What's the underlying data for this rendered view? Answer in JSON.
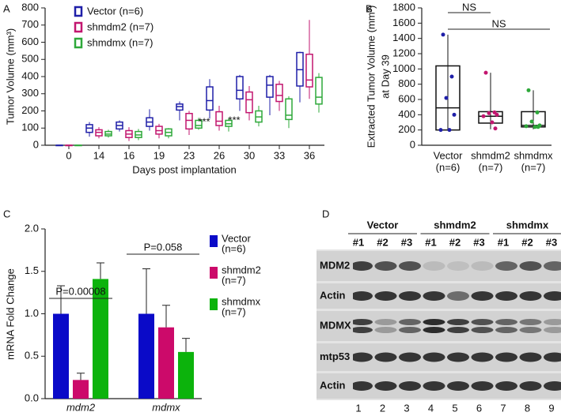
{
  "chart_data": [
    {
      "panel": "A",
      "type": "box",
      "ylabel": "Tumor Volume (mm³)",
      "xlabel": "Days post implantation",
      "categories": [
        "0",
        "14",
        "16",
        "19",
        "23",
        "26",
        "30",
        "33",
        "36"
      ],
      "ylim": [
        0,
        800
      ],
      "yticks": [
        0,
        100,
        200,
        300,
        400,
        500,
        600,
        700,
        800
      ],
      "annotations": [
        "***",
        "***"
      ],
      "series": [
        {
          "name": "Vector (n=6)",
          "color": "#1f1fa8",
          "boxes": [
            {
              "min": 0,
              "q1": 0,
              "median": 0,
              "q3": 0,
              "max": 0
            },
            {
              "min": 50,
              "q1": 75,
              "median": 100,
              "q3": 120,
              "max": 135
            },
            {
              "min": 80,
              "q1": 95,
              "median": 115,
              "q3": 135,
              "max": 145
            },
            {
              "min": 85,
              "q1": 110,
              "median": 135,
              "q3": 160,
              "max": 210
            },
            {
              "min": 145,
              "q1": 205,
              "median": 225,
              "q3": 240,
              "max": 255
            },
            {
              "min": 155,
              "q1": 205,
              "median": 260,
              "q3": 340,
              "max": 385
            },
            {
              "min": 200,
              "q1": 270,
              "median": 320,
              "q3": 400,
              "max": 410
            },
            {
              "min": 175,
              "q1": 280,
              "median": 350,
              "q3": 400,
              "max": 410
            },
            {
              "min": 250,
              "q1": 345,
              "median": 440,
              "q3": 540,
              "max": 545
            }
          ]
        },
        {
          "name": "shmdm2 (n=7)",
          "color": "#c2166f",
          "boxes": [
            {
              "min": 0,
              "q1": 0,
              "median": 0,
              "q3": 0,
              "max": 0
            },
            {
              "min": 40,
              "q1": 55,
              "median": 75,
              "q3": 90,
              "max": 105
            },
            {
              "min": 25,
              "q1": 45,
              "median": 65,
              "q3": 85,
              "max": 105
            },
            {
              "min": 40,
              "q1": 65,
              "median": 85,
              "q3": 110,
              "max": 125
            },
            {
              "min": 60,
              "q1": 95,
              "median": 145,
              "q3": 185,
              "max": 200
            },
            {
              "min": 85,
              "q1": 115,
              "median": 140,
              "q3": 195,
              "max": 230
            },
            {
              "min": 145,
              "q1": 190,
              "median": 265,
              "q3": 310,
              "max": 345
            },
            {
              "min": 200,
              "q1": 255,
              "median": 290,
              "q3": 355,
              "max": 375
            },
            {
              "min": 270,
              "q1": 340,
              "median": 380,
              "q3": 530,
              "max": 730
            }
          ]
        },
        {
          "name": "shmdmx (n=7)",
          "color": "#2ea83a",
          "boxes": [
            {
              "min": 0,
              "q1": 0,
              "median": 0,
              "q3": 0,
              "max": 0
            },
            {
              "min": 45,
              "q1": 55,
              "median": 65,
              "q3": 80,
              "max": 90
            },
            {
              "min": 30,
              "q1": 45,
              "median": 60,
              "q3": 80,
              "max": 95
            },
            {
              "min": 40,
              "q1": 55,
              "median": 75,
              "q3": 95,
              "max": 100
            },
            {
              "min": 90,
              "q1": 100,
              "median": 115,
              "q3": 145,
              "max": 160
            },
            {
              "min": 80,
              "q1": 110,
              "median": 125,
              "q3": 145,
              "max": 160
            },
            {
              "min": 110,
              "q1": 135,
              "median": 165,
              "q3": 200,
              "max": 230
            },
            {
              "min": 100,
              "q1": 150,
              "median": 175,
              "q3": 270,
              "max": 285
            },
            {
              "min": 190,
              "q1": 240,
              "median": 280,
              "q3": 395,
              "max": 420
            }
          ]
        }
      ]
    },
    {
      "panel": "B",
      "type": "box",
      "ylabel": [
        "Extracted Tumor Volume (mm³)",
        "at Day 39"
      ],
      "categories": [
        "Vector",
        "shmdm2",
        "shmdmx"
      ],
      "category_notes": [
        "(n=6)",
        "(n=7)",
        "(n=7)"
      ],
      "colors": [
        "#1f1fa8",
        "#c2166f",
        "#2ea83a"
      ],
      "ylim": [
        0,
        1800
      ],
      "yticks": [
        0,
        200,
        400,
        600,
        800,
        1000,
        1200,
        1400,
        1600,
        1800
      ],
      "annotations": [
        "NS",
        "NS"
      ],
      "boxes": [
        {
          "min": 190,
          "q1": 200,
          "median": 490,
          "q3": 1040,
          "max": 1450
        },
        {
          "min": 210,
          "q1": 290,
          "median": 380,
          "q3": 440,
          "max": 950
        },
        {
          "min": 210,
          "q1": 240,
          "median": 260,
          "q3": 440,
          "max": 720
        }
      ],
      "points": [
        [
          1450,
          900,
          620,
          400,
          200,
          200
        ],
        [
          950,
          430,
          420,
          400,
          380,
          300,
          220
        ],
        [
          720,
          430,
          310,
          260,
          250,
          240,
          240
        ]
      ]
    },
    {
      "panel": "C",
      "type": "bar",
      "ylabel": "mRNA Fold Change",
      "categories": [
        "mdm2",
        "mdmx"
      ],
      "ylim": [
        0,
        2
      ],
      "yticks": [
        {
          "value": 0,
          "label": "0.0"
        },
        {
          "value": 0.5,
          "label": "0.5"
        },
        {
          "value": 1,
          "label": "1.0"
        },
        {
          "value": 1.5,
          "label": "1.5"
        },
        {
          "value": 2,
          "label": "2.0"
        }
      ],
      "annotations": [
        "P=0.00008",
        "P=0.058"
      ],
      "series": [
        {
          "name": "Vector",
          "note": "(n=6)",
          "color": "#0a0ac8",
          "values": [
            1.0,
            1.0
          ],
          "errors": [
            0.33,
            0.53
          ]
        },
        {
          "name": "shmdm2",
          "note": "(n=7)",
          "color": "#cc0a6a",
          "values": [
            0.22,
            0.84
          ],
          "errors": [
            0.08,
            0.26
          ]
        },
        {
          "name": "shmdmx",
          "note": "(n=7)",
          "color": "#0cb30c",
          "values": [
            1.41,
            0.55
          ],
          "errors": [
            0.19,
            0.16
          ]
        }
      ]
    }
  ],
  "blot": {
    "panel": "D",
    "groups": [
      "Vector",
      "shmdm2",
      "shmdmx"
    ],
    "lanes": [
      "#1",
      "#2",
      "#3",
      "#1",
      "#2",
      "#3",
      "#1",
      "#2",
      "#3"
    ],
    "rows": [
      "MDM2",
      "Actin",
      "MDMX",
      "mtp53",
      "Actin"
    ],
    "lane_numbers": [
      1,
      2,
      3,
      4,
      5,
      6,
      7,
      8,
      9
    ]
  }
}
